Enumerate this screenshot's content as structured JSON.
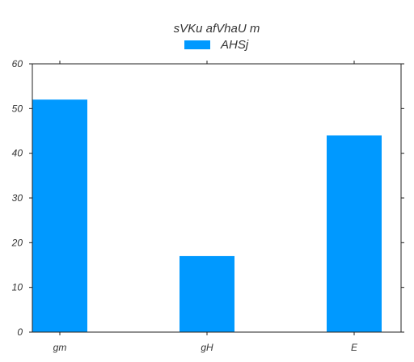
{
  "chart_data": {
    "type": "bar",
    "title": "sVKu afVhaU m",
    "categories": [
      "gm",
      "gH",
      "E"
    ],
    "series": [
      {
        "name": "AHSj",
        "values": [
          52,
          17,
          44
        ],
        "color": "#0099ff"
      }
    ],
    "ylim": [
      0,
      60
    ],
    "yticks": [
      0,
      10,
      20,
      30,
      40,
      50,
      60
    ],
    "xlabel": "",
    "ylabel": "",
    "grid": false,
    "legend_position": "top-center"
  }
}
